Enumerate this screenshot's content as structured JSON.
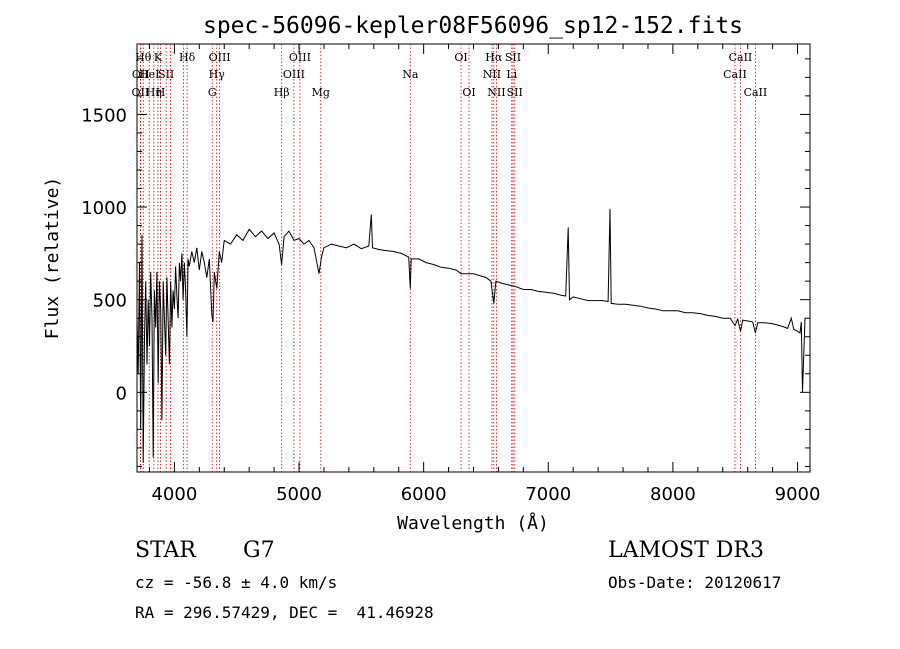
{
  "chart_data": {
    "type": "line",
    "title": "spec-56096-kepler08F56096_sp12-152.fits",
    "xlabel": "Wavelength (Å)",
    "ylabel": "Flux (relative)",
    "xlim": [
      3700,
      9100
    ],
    "ylim": [
      -430,
      1880
    ],
    "xticks": [
      4000,
      5000,
      6000,
      7000,
      8000,
      9000
    ],
    "xtick_labels": [
      "4000",
      "5000",
      "6000",
      "7000",
      "8000",
      "9000"
    ],
    "yticks": [
      0,
      500,
      1000,
      1500
    ],
    "ytick_labels": [
      "0",
      "500",
      "1000",
      "1500"
    ],
    "grid": false,
    "line_color": "#000000",
    "marker_color": "#c00000",
    "series": [
      {
        "name": "flux",
        "points": [
          [
            3700,
            400
          ],
          [
            3710,
            100
          ],
          [
            3720,
            700
          ],
          [
            3730,
            -200
          ],
          [
            3740,
            850
          ],
          [
            3750,
            -380
          ],
          [
            3760,
            300
          ],
          [
            3770,
            600
          ],
          [
            3780,
            150
          ],
          [
            3790,
            500
          ],
          [
            3800,
            250
          ],
          [
            3810,
            650
          ],
          [
            3820,
            400
          ],
          [
            3830,
            -350
          ],
          [
            3840,
            550
          ],
          [
            3850,
            350
          ],
          [
            3860,
            650
          ],
          [
            3870,
            50
          ],
          [
            3880,
            600
          ],
          [
            3890,
            450
          ],
          [
            3900,
            -150
          ],
          [
            3910,
            600
          ],
          [
            3920,
            400
          ],
          [
            3930,
            200
          ],
          [
            3940,
            620
          ],
          [
            3950,
            380
          ],
          [
            3960,
            150
          ],
          [
            3970,
            600
          ],
          [
            3980,
            350
          ],
          [
            3990,
            550
          ],
          [
            4000,
            450
          ],
          [
            4010,
            680
          ],
          [
            4020,
            520
          ],
          [
            4030,
            400
          ],
          [
            4040,
            700
          ],
          [
            4050,
            600
          ],
          [
            4060,
            750
          ],
          [
            4070,
            500
          ],
          [
            4080,
            700
          ],
          [
            4090,
            550
          ],
          [
            4100,
            300
          ],
          [
            4110,
            720
          ],
          [
            4120,
            680
          ],
          [
            4140,
            760
          ],
          [
            4160,
            700
          ],
          [
            4180,
            780
          ],
          [
            4200,
            660
          ],
          [
            4220,
            760
          ],
          [
            4240,
            700
          ],
          [
            4260,
            620
          ],
          [
            4280,
            720
          ],
          [
            4300,
            420
          ],
          [
            4310,
            380
          ],
          [
            4320,
            650
          ],
          [
            4340,
            560
          ],
          [
            4360,
            760
          ],
          [
            4380,
            700
          ],
          [
            4400,
            820
          ],
          [
            4450,
            800
          ],
          [
            4500,
            850
          ],
          [
            4550,
            820
          ],
          [
            4600,
            880
          ],
          [
            4650,
            840
          ],
          [
            4700,
            870
          ],
          [
            4750,
            830
          ],
          [
            4800,
            860
          ],
          [
            4840,
            800
          ],
          [
            4860,
            690
          ],
          [
            4880,
            840
          ],
          [
            4920,
            870
          ],
          [
            4960,
            820
          ],
          [
            5000,
            830
          ],
          [
            5040,
            800
          ],
          [
            5080,
            820
          ],
          [
            5120,
            780
          ],
          [
            5160,
            640
          ],
          [
            5180,
            730
          ],
          [
            5200,
            780
          ],
          [
            5260,
            800
          ],
          [
            5320,
            790
          ],
          [
            5380,
            780
          ],
          [
            5440,
            800
          ],
          [
            5500,
            775
          ],
          [
            5560,
            790
          ],
          [
            5580,
            960
          ],
          [
            5590,
            780
          ],
          [
            5650,
            770
          ],
          [
            5700,
            765
          ],
          [
            5760,
            760
          ],
          [
            5820,
            750
          ],
          [
            5880,
            730
          ],
          [
            5893,
            560
          ],
          [
            5900,
            720
          ],
          [
            5960,
            720
          ],
          [
            6020,
            700
          ],
          [
            6080,
            690
          ],
          [
            6140,
            675
          ],
          [
            6200,
            670
          ],
          [
            6260,
            660
          ],
          [
            6300,
            640
          ],
          [
            6350,
            640
          ],
          [
            6400,
            640
          ],
          [
            6450,
            630
          ],
          [
            6500,
            620
          ],
          [
            6540,
            600
          ],
          [
            6563,
            480
          ],
          [
            6580,
            600
          ],
          [
            6620,
            590
          ],
          [
            6680,
            580
          ],
          [
            6740,
            570
          ],
          [
            6800,
            555
          ],
          [
            6860,
            555
          ],
          [
            6920,
            545
          ],
          [
            6980,
            540
          ],
          [
            7040,
            535
          ],
          [
            7100,
            525
          ],
          [
            7140,
            520
          ],
          [
            7160,
            890
          ],
          [
            7170,
            500
          ],
          [
            7200,
            515
          ],
          [
            7260,
            505
          ],
          [
            7320,
            495
          ],
          [
            7380,
            495
          ],
          [
            7440,
            495
          ],
          [
            7480,
            490
          ],
          [
            7495,
            990
          ],
          [
            7505,
            480
          ],
          [
            7560,
            475
          ],
          [
            7620,
            475
          ],
          [
            7680,
            470
          ],
          [
            7740,
            465
          ],
          [
            7800,
            455
          ],
          [
            7860,
            450
          ],
          [
            7920,
            440
          ],
          [
            7980,
            440
          ],
          [
            8040,
            440
          ],
          [
            8100,
            430
          ],
          [
            8160,
            430
          ],
          [
            8220,
            425
          ],
          [
            8280,
            415
          ],
          [
            8340,
            410
          ],
          [
            8400,
            400
          ],
          [
            8460,
            400
          ],
          [
            8498,
            360
          ],
          [
            8520,
            395
          ],
          [
            8542,
            330
          ],
          [
            8560,
            390
          ],
          [
            8600,
            385
          ],
          [
            8640,
            380
          ],
          [
            8662,
            320
          ],
          [
            8680,
            375
          ],
          [
            8740,
            375
          ],
          [
            8800,
            370
          ],
          [
            8860,
            360
          ],
          [
            8920,
            345
          ],
          [
            8950,
            400
          ],
          [
            8970,
            340
          ],
          [
            9000,
            330
          ],
          [
            9020,
            320
          ],
          [
            9030,
            380
          ],
          [
            9040,
            0
          ],
          [
            9060,
            400
          ]
        ]
      }
    ],
    "line_markers": [
      {
        "wavelength": 3727,
        "labels": [
          "OII"
        ],
        "rows": [
          3
        ]
      },
      {
        "wavelength": 3730,
        "labels": [
          "OII"
        ],
        "rows": [
          2
        ]
      },
      {
        "wavelength": 3750,
        "labels": [
          "Hθ"
        ],
        "rows": [
          1
        ]
      },
      {
        "wavelength": 3798,
        "labels": [
          "HeI"
        ],
        "rows": [
          2
        ]
      },
      {
        "wavelength": 3835,
        "labels": [
          "Hη"
        ],
        "rows": [
          3
        ]
      },
      {
        "wavelength": 3868,
        "labels": [
          "K"
        ],
        "rows": [
          1
        ]
      },
      {
        "wavelength": 3889,
        "labels": [
          "H"
        ],
        "rows": [
          3
        ]
      },
      {
        "wavelength": 3934,
        "labels": [
          "SII"
        ],
        "rows": [
          2
        ]
      },
      {
        "wavelength": 3969,
        "labels": [],
        "rows": []
      },
      {
        "wavelength": 4072,
        "labels": [],
        "rows": []
      },
      {
        "wavelength": 4102,
        "labels": [
          "Hδ"
        ],
        "rows": [
          1
        ]
      },
      {
        "wavelength": 4304,
        "labels": [
          "G"
        ],
        "rows": [
          3
        ]
      },
      {
        "wavelength": 4340,
        "labels": [
          "Hγ"
        ],
        "rows": [
          2
        ]
      },
      {
        "wavelength": 4363,
        "labels": [
          "OIII"
        ],
        "rows": [
          1
        ]
      },
      {
        "wavelength": 4861,
        "labels": [
          "Hβ"
        ],
        "rows": [
          3
        ]
      },
      {
        "wavelength": 4959,
        "labels": [
          "OIII"
        ],
        "rows": [
          2
        ]
      },
      {
        "wavelength": 5007,
        "labels": [
          "OIII"
        ],
        "rows": [
          1
        ]
      },
      {
        "wavelength": 5175,
        "labels": [
          "Mg"
        ],
        "rows": [
          3
        ]
      },
      {
        "wavelength": 5893,
        "labels": [
          "Na"
        ],
        "rows": [
          2
        ]
      },
      {
        "wavelength": 6300,
        "labels": [
          "OI"
        ],
        "rows": [
          1
        ]
      },
      {
        "wavelength": 6364,
        "labels": [
          "OI"
        ],
        "rows": [
          3
        ]
      },
      {
        "wavelength": 6548,
        "labels": [
          "NII"
        ],
        "rows": [
          2
        ]
      },
      {
        "wavelength": 6563,
        "labels": [
          "Hα"
        ],
        "rows": [
          1
        ]
      },
      {
        "wavelength": 6584,
        "labels": [
          "NII"
        ],
        "rows": [
          3
        ]
      },
      {
        "wavelength": 6707,
        "labels": [
          "Li"
        ],
        "rows": [
          2
        ]
      },
      {
        "wavelength": 6717,
        "labels": [
          "SII"
        ],
        "rows": [
          1
        ]
      },
      {
        "wavelength": 6731,
        "labels": [
          "SII"
        ],
        "rows": [
          3
        ]
      },
      {
        "wavelength": 8498,
        "labels": [
          "CaII"
        ],
        "rows": [
          2
        ]
      },
      {
        "wavelength": 8542,
        "labels": [
          "CaII"
        ],
        "rows": [
          1
        ]
      },
      {
        "wavelength": 8662,
        "labels": [
          "CaII"
        ],
        "rows": [
          3
        ]
      }
    ]
  },
  "info": {
    "class": "STAR",
    "subclass": "G7",
    "survey": "LAMOST DR3",
    "cz": "cz = -56.8 ± 4.0 km/s",
    "obs_date": "Obs-Date: 20120617",
    "coords": "RA = 296.57429, DEC =  41.46928"
  }
}
